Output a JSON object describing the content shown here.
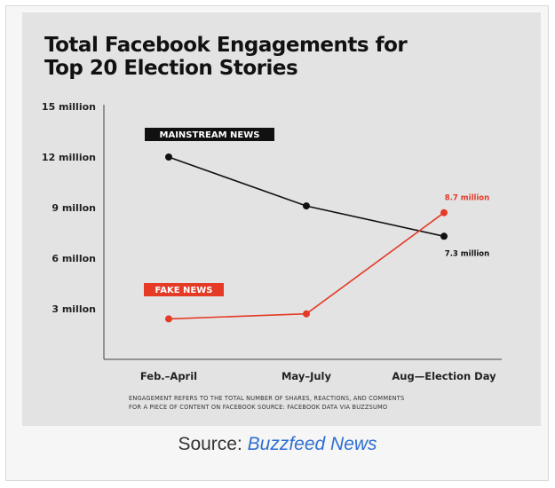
{
  "title_line1": "Total Facebook Engagements for",
  "title_line2": "Top 20 Election Stories",
  "note_line1": "Engagement refers to the total number of shares, reactions, and comments",
  "note_line2": "for a piece of content on Facebook Source: Facebook data via BuzzSumo",
  "source": {
    "prefix": "Source: ",
    "link": "Buzzfeed News"
  },
  "colors": {
    "mainstream": "#111111",
    "fake": "#e43a26",
    "panel": "#e3e3e3",
    "link": "#2e6fd0"
  },
  "chart_data": {
    "type": "line",
    "categories": [
      "Feb.–April",
      "May–July",
      "Aug—Election Day"
    ],
    "series": [
      {
        "name": "MAINSTREAM NEWS",
        "values": [
          12,
          9.1,
          7.3
        ],
        "color": "#111111"
      },
      {
        "name": "FAKE NEWS",
        "values": [
          2.4,
          2.7,
          8.7
        ],
        "color": "#e43a26"
      }
    ],
    "y_ticks": [
      {
        "value": 3,
        "label": "3 millon"
      },
      {
        "value": 6,
        "label": "6 millon"
      },
      {
        "value": 9,
        "label": "9 millon"
      },
      {
        "value": 12,
        "label": "12 million"
      },
      {
        "value": 15,
        "label": "15 million"
      }
    ],
    "data_labels": [
      {
        "series": 1,
        "index": 2,
        "text": "8.7 million"
      },
      {
        "series": 0,
        "index": 2,
        "text": "7.3 million"
      }
    ],
    "ylim": [
      0,
      15
    ],
    "grid": false
  }
}
